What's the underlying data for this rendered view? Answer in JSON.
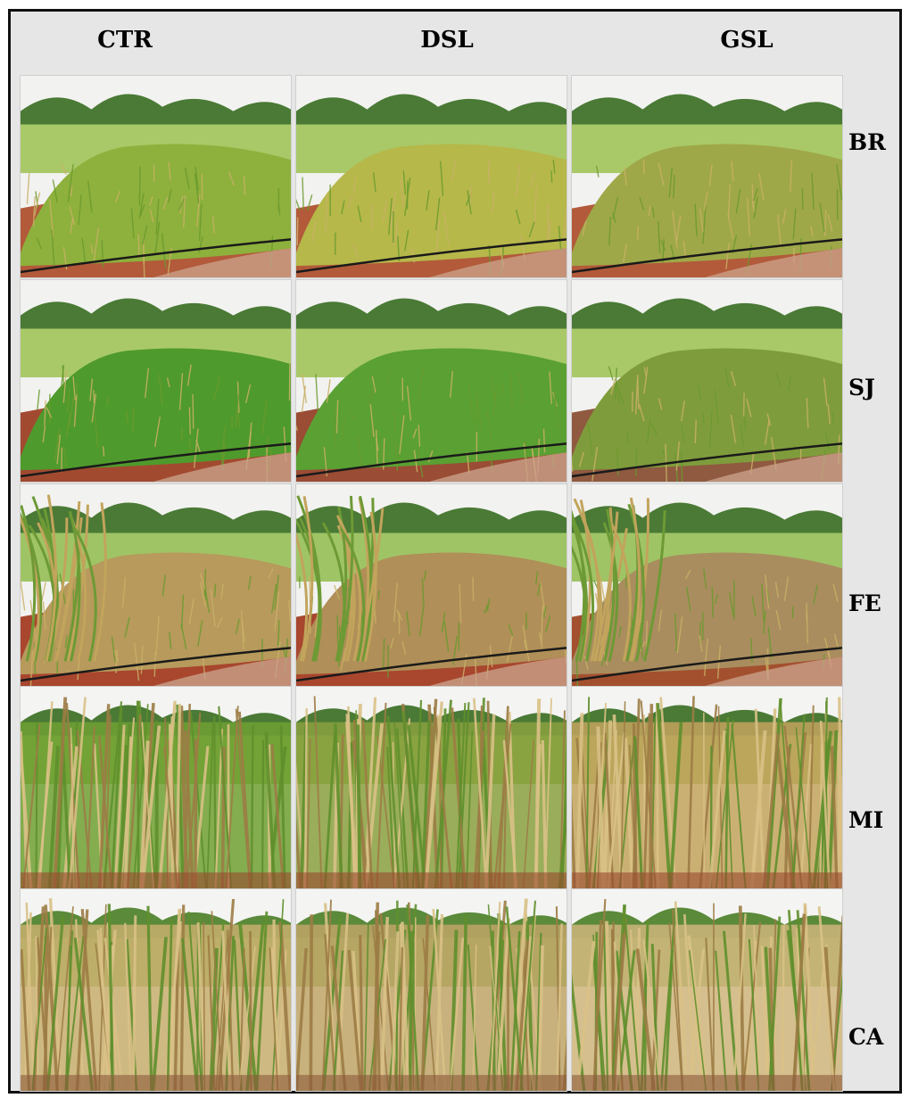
{
  "columns": [
    "CTR",
    "DSL",
    "GSL"
  ],
  "rows": [
    "BR",
    "SJ",
    "FE",
    "MI",
    "CA"
  ],
  "photos": [
    {
      "row": "BR",
      "col": "CTR",
      "scene": "dense green grass plot with distant trees",
      "palette": {
        "sky": "#f2f2f0",
        "far": "#4a7a35",
        "ground": "#a9c968",
        "plant": "#8db13c",
        "soil": "#b25a3a"
      }
    },
    {
      "row": "BR",
      "col": "DSL",
      "scene": "grass plot turning yellow",
      "palette": {
        "sky": "#f2f2f0",
        "far": "#4a7a35",
        "ground": "#a9c968",
        "plant": "#b6b84a",
        "soil": "#b25a3a"
      }
    },
    {
      "row": "BR",
      "col": "GSL",
      "scene": "grass plot with dry tips",
      "palette": {
        "sky": "#f2f2f0",
        "far": "#4a7a35",
        "ground": "#a9c968",
        "plant": "#9fa848",
        "soil": "#b25a3a"
      }
    },
    {
      "row": "SJ",
      "col": "CTR",
      "scene": "green soybean plot on red soil",
      "palette": {
        "sky": "#f2f2f0",
        "far": "#4a7a35",
        "ground": "#a9c968",
        "plant": "#4f9a2c",
        "soil": "#a24a30"
      }
    },
    {
      "row": "SJ",
      "col": "DSL",
      "scene": "green soybean plot with weeds",
      "palette": {
        "sky": "#f2f2f0",
        "far": "#4a7a35",
        "ground": "#a9c968",
        "plant": "#5aa033",
        "soil": "#9a4c34"
      }
    },
    {
      "row": "SJ",
      "col": "GSL",
      "scene": "sparse soybean plot with dry soil",
      "palette": {
        "sky": "#f2f2f0",
        "far": "#4a7a35",
        "ground": "#a9c968",
        "plant": "#7f9c3c",
        "soil": "#8f5a40"
      }
    },
    {
      "row": "FE",
      "col": "CTR",
      "scene": "dry bean plot beside corn",
      "palette": {
        "sky": "#f2f2f0",
        "far": "#4a7a35",
        "ground": "#9fc466",
        "plant": "#b79a5c",
        "soil": "#a8462e"
      }
    },
    {
      "row": "FE",
      "col": "DSL",
      "scene": "dry bean plot on red soil",
      "palette": {
        "sky": "#f2f2f0",
        "far": "#4a7a35",
        "ground": "#9fc466",
        "plant": "#b08f58",
        "soil": "#a8462e"
      }
    },
    {
      "row": "FE",
      "col": "GSL",
      "scene": "dry bean plot with dead corn",
      "palette": {
        "sky": "#f2f2f0",
        "far": "#4a7a35",
        "ground": "#9fc466",
        "plant": "#a98d5e",
        "soil": "#a3502f"
      }
    },
    {
      "row": "MI",
      "col": "CTR",
      "scene": "green millet plants",
      "palette": {
        "sky": "#f4f4f2",
        "far": "#4a7a35",
        "ground": "#8ab24a",
        "plant": "#6fa032",
        "soil": "#9a4a2e"
      }
    },
    {
      "row": "MI",
      "col": "DSL",
      "scene": "millet partially dry",
      "palette": {
        "sky": "#f4f4f2",
        "far": "#4a7a35",
        "ground": "#8ab24a",
        "plant": "#8aa040",
        "soil": "#9a4a2e"
      }
    },
    {
      "row": "MI",
      "col": "GSL",
      "scene": "dry millet stalks",
      "palette": {
        "sky": "#f4f4f2",
        "far": "#4a7a35",
        "ground": "#8ab24a",
        "plant": "#c3a35e",
        "soil": "#9a4a2e"
      }
    },
    {
      "row": "CA",
      "col": "CTR",
      "scene": "sugarcane with dry lower leaves",
      "palette": {
        "sky": "#f4f4f2",
        "far": "#5a8a3a",
        "ground": "#7fae4a",
        "plant": "#c8ae6e",
        "soil": "#8c5a3a"
      }
    },
    {
      "row": "CA",
      "col": "DSL",
      "scene": "sugarcane mostly dry",
      "palette": {
        "sky": "#f4f4f2",
        "far": "#5a8a3a",
        "ground": "#7fae4a",
        "plant": "#c0a468",
        "soil": "#8c5a3a"
      }
    },
    {
      "row": "CA",
      "col": "GSL",
      "scene": "dry sugarcane stalks",
      "palette": {
        "sky": "#f4f4f2",
        "far": "#5a8a3a",
        "ground": "#7fae4a",
        "plant": "#cfb57c",
        "soil": "#8c5a3a"
      }
    }
  ]
}
